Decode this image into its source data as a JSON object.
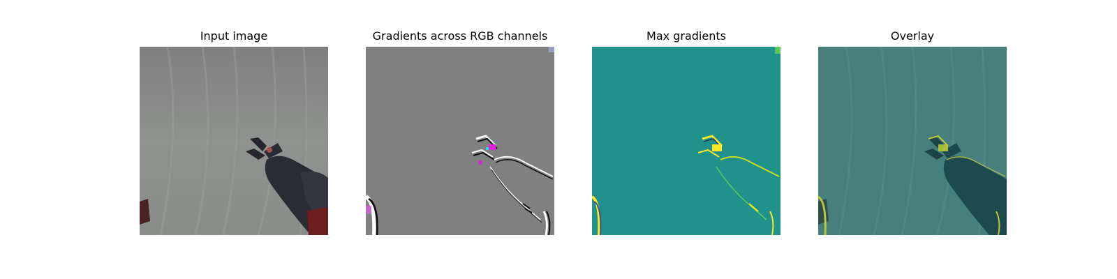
{
  "figure": {
    "panels": [
      {
        "title": "Input image",
        "content": "photo"
      },
      {
        "title": "Gradients across RGB channels",
        "content": "rgb-gradient-map"
      },
      {
        "title": "Max gradients",
        "content": "max-gradient-map"
      },
      {
        "title": "Overlay",
        "content": "overlay"
      }
    ]
  },
  "colors": {
    "background": "#ffffff",
    "cloth": "#8f928f",
    "gradient_gray": "#808080",
    "viridis_teal": "#21918c",
    "viridis_yellow": "#fde725",
    "robot_dark": "#2b2b33",
    "robot_red": "#6d1e1e"
  }
}
